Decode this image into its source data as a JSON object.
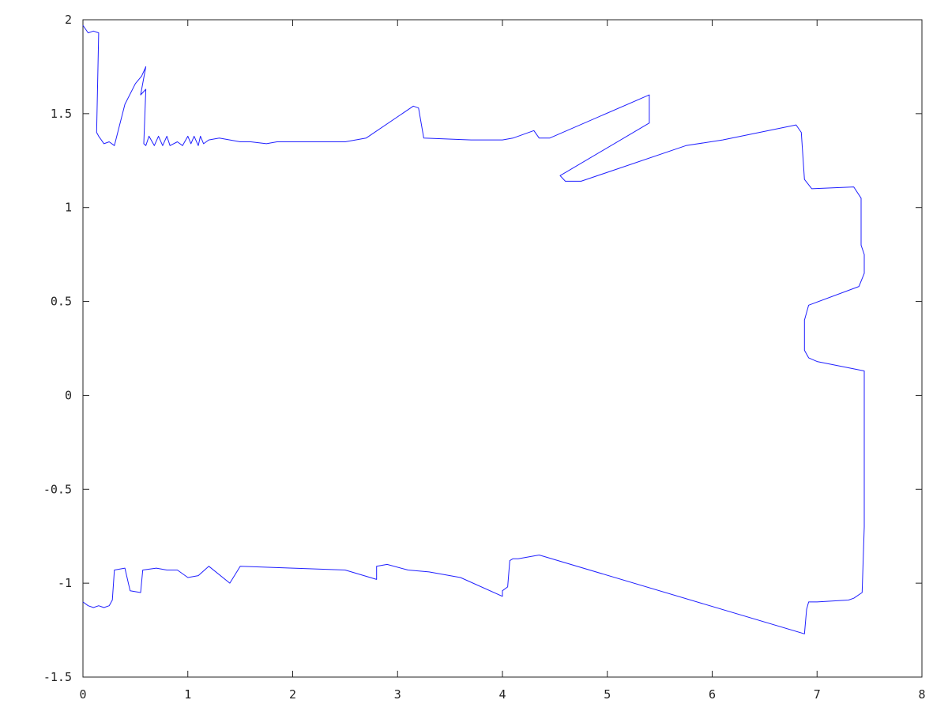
{
  "chart_data": {
    "type": "line",
    "title": "",
    "xlabel": "",
    "ylabel": "",
    "xlim": [
      0,
      8
    ],
    "ylim": [
      -1.5,
      2
    ],
    "xticks": [
      "0",
      "1",
      "2",
      "3",
      "4",
      "5",
      "6",
      "7",
      "8"
    ],
    "yticks": [
      "-1.5",
      "-1",
      "-0.5",
      "0",
      "0.5",
      "1",
      "1.5",
      "2"
    ],
    "grid": false,
    "legend": "none",
    "colors": {
      "line": "#1f1fff",
      "axes": "#222222",
      "background": "#ffffff"
    },
    "series": [
      {
        "x": [
          0.0,
          0.05,
          0.1,
          0.15,
          0.13,
          0.15,
          0.2,
          0.25,
          0.3,
          0.4,
          0.5,
          0.56,
          0.6,
          0.55,
          0.6,
          0.58,
          0.6,
          0.63,
          0.68,
          0.72,
          0.76,
          0.8,
          0.83,
          0.9,
          0.95,
          1.0,
          1.03,
          1.06,
          1.1,
          1.12,
          1.15,
          1.2,
          1.3,
          1.4,
          1.5,
          1.6,
          1.75,
          1.85,
          2.0,
          2.3,
          2.5,
          2.7,
          3.15,
          3.2,
          3.25,
          3.7,
          4.0,
          4.1,
          4.3,
          4.35,
          4.45,
          5.4,
          5.4,
          4.55,
          4.6,
          4.75,
          5.75,
          6.1,
          6.8,
          6.85,
          6.88,
          6.95,
          7.35,
          7.42,
          7.42,
          7.45,
          7.45,
          7.4,
          6.92,
          6.88,
          6.88,
          6.92,
          7.0,
          7.45,
          7.45,
          7.45,
          7.43,
          7.35,
          7.3,
          7.0,
          6.92,
          6.9,
          6.88,
          4.35,
          4.15,
          4.1,
          4.07,
          4.05,
          4.0,
          4.0,
          3.6,
          3.3,
          3.1,
          2.9,
          2.8,
          2.8,
          2.5,
          2.0,
          1.5,
          1.4,
          1.2,
          1.1,
          1.0,
          0.9,
          0.8,
          0.7,
          0.57,
          0.55,
          0.45,
          0.4,
          0.3,
          0.28,
          0.25,
          0.2,
          0.15,
          0.1,
          0.05,
          0.0
        ],
        "y": [
          1.97,
          1.93,
          1.94,
          1.93,
          1.4,
          1.38,
          1.34,
          1.35,
          1.33,
          1.55,
          1.66,
          1.7,
          1.75,
          1.6,
          1.63,
          1.34,
          1.33,
          1.38,
          1.33,
          1.38,
          1.33,
          1.38,
          1.33,
          1.35,
          1.33,
          1.38,
          1.34,
          1.38,
          1.33,
          1.38,
          1.34,
          1.36,
          1.37,
          1.36,
          1.35,
          1.35,
          1.34,
          1.35,
          1.35,
          1.35,
          1.35,
          1.37,
          1.54,
          1.53,
          1.37,
          1.36,
          1.36,
          1.37,
          1.41,
          1.37,
          1.37,
          1.6,
          1.45,
          1.17,
          1.14,
          1.14,
          1.33,
          1.36,
          1.44,
          1.4,
          1.15,
          1.1,
          1.11,
          1.05,
          0.8,
          0.75,
          0.65,
          0.58,
          0.48,
          0.4,
          0.24,
          0.2,
          0.18,
          0.13,
          -0.4,
          -0.7,
          -1.05,
          -1.08,
          -1.09,
          -1.1,
          -1.1,
          -1.14,
          -1.27,
          -0.85,
          -0.87,
          -0.87,
          -0.88,
          -1.02,
          -1.04,
          -1.07,
          -0.97,
          -0.94,
          -0.93,
          -0.9,
          -0.91,
          -0.98,
          -0.93,
          -0.92,
          -0.91,
          -1.0,
          -0.91,
          -0.96,
          -0.97,
          -0.93,
          -0.93,
          -0.92,
          -0.93,
          -1.05,
          -1.04,
          -0.92,
          -0.93,
          -1.09,
          -1.12,
          -1.13,
          -1.12,
          -1.13,
          -1.12,
          -1.1
        ]
      }
    ]
  }
}
